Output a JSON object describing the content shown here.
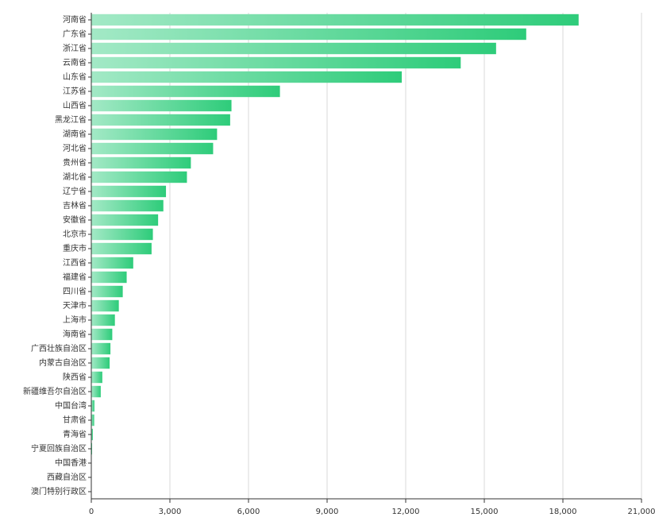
{
  "chart_data": {
    "type": "barh",
    "categories": [
      "河南省",
      "广东省",
      "浙江省",
      "云南省",
      "山东省",
      "江苏省",
      "山西省",
      "黑龙江省",
      "湖南省",
      "河北省",
      "贵州省",
      "湖北省",
      "辽宁省",
      "吉林省",
      "安徽省",
      "北京市",
      "重庆市",
      "江西省",
      "福建省",
      "四川省",
      "天津市",
      "上海市",
      "海南省",
      "广西壮族自治区",
      "内蒙古自治区",
      "陕西省",
      "新疆维吾尔自治区",
      "中国台湾",
      "甘肃省",
      "青海省",
      "宁夏回族自治区",
      "中国香港",
      "西藏自治区",
      "澳门特别行政区"
    ],
    "values": [
      18600,
      16600,
      15450,
      14100,
      11850,
      7200,
      5350,
      5300,
      4800,
      4650,
      3800,
      3650,
      2850,
      2750,
      2550,
      2350,
      2300,
      1600,
      1350,
      1200,
      1050,
      900,
      800,
      730,
      700,
      420,
      360,
      120,
      110,
      60,
      30,
      5,
      0,
      0
    ],
    "color": "#2ecc7a",
    "color_start": "#a3e9c6",
    "xlim": [
      0,
      21000
    ],
    "xticks": [
      0,
      {
        "value": 3000,
        "label": "3,000"
      },
      {
        "value": 6000,
        "label": "6,000"
      },
      {
        "value": 9000,
        "label": "9,000"
      },
      {
        "value": 12000,
        "label": "12,000"
      },
      {
        "value": 15000,
        "label": "15,000"
      },
      {
        "value": 18000,
        "label": "18,000"
      },
      {
        "value": 21000,
        "label": "21,000"
      }
    ],
    "grid": true
  }
}
